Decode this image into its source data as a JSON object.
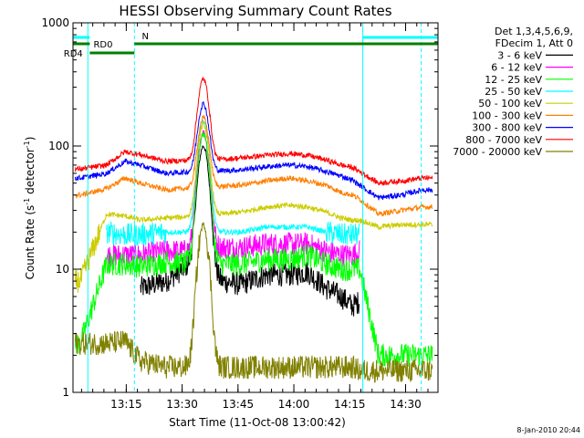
{
  "chart_data": {
    "type": "line",
    "title": "HESSI Observing Summary Count Rates",
    "xlabel": "Start Time (11-Oct-08 13:00:42)",
    "ylabel_main": "Count Rate (s",
    "ylabel_sup1": "-1",
    "ylabel_mid": " detector",
    "ylabel_sup2": "-1",
    "ylabel_end": ")",
    "yscale": "log",
    "ylim": [
      1,
      1000
    ],
    "xlim_minutes": [
      0,
      98
    ],
    "x_ticks": [
      {
        "label": "13:15",
        "minute": 14.3
      },
      {
        "label": "13:30",
        "minute": 29.3
      },
      {
        "label": "13:45",
        "minute": 44.3
      },
      {
        "label": "14:00",
        "minute": 59.3
      },
      {
        "label": "14:15",
        "minute": 74.3
      },
      {
        "label": "14:30",
        "minute": 89.3
      }
    ],
    "y_ticks": [
      {
        "label": "1",
        "value": 1
      },
      {
        "label": "10",
        "value": 10
      },
      {
        "label": "100",
        "value": 100
      },
      {
        "label": "1000",
        "value": 1000
      }
    ],
    "legend_header": [
      "Det 1,3,4,5,6,9,",
      "FDecim 1, Att 0"
    ],
    "legend_position": "right",
    "flag_labels": {
      "n": "N",
      "rd0": "RD0",
      "rd4": "RD4"
    },
    "flag_colors": {
      "n": "#00ffff",
      "rd": "#008000"
    },
    "vlines_minutes": [
      4,
      16.5,
      77.8,
      93.5
    ],
    "burst_peak_minute": 35,
    "series": [
      {
        "name": "3 - 6 keV",
        "color": "#000000",
        "base": [
          null,
          null,
          null,
          7,
          8,
          12,
          8,
          7.5,
          9,
          9,
          9.5,
          7,
          6,
          5,
          5.5,
          null,
          null,
          null
        ],
        "peak": 100
      },
      {
        "name": "6 - 12 keV",
        "color": "#ff00ff",
        "base": [
          null,
          13,
          13,
          13,
          14,
          14,
          15,
          15,
          16,
          16,
          16,
          14,
          13,
          13,
          14,
          null,
          null,
          null
        ],
        "peak": 130
      },
      {
        "name": "12 - 25 keV",
        "color": "#00ff00",
        "base": [
          2.5,
          11,
          11,
          10.5,
          11.5,
          11,
          11,
          11,
          12,
          12,
          13,
          11,
          10,
          10,
          10,
          2,
          2,
          2
        ],
        "peak": 125
      },
      {
        "name": "25 - 50 keV",
        "color": "#00ffff",
        "base": [
          null,
          20,
          19,
          19,
          20,
          20,
          20,
          20,
          22,
          22,
          22,
          20,
          19,
          19,
          19,
          null,
          null,
          null
        ],
        "peak": 160
      },
      {
        "name": "50 - 100 keV",
        "color": "#cccc00",
        "base": [
          8,
          28,
          27,
          25,
          26,
          27,
          28,
          29,
          32,
          33,
          32,
          29,
          26,
          25,
          25,
          22,
          23,
          23
        ],
        "peak": 150
      },
      {
        "name": "100 - 300 keV",
        "color": "#ff7f00",
        "base": [
          40,
          45,
          55,
          50,
          44,
          46,
          47,
          48,
          52,
          55,
          52,
          48,
          42,
          40,
          37,
          28,
          30,
          32
        ],
        "peak": 170
      },
      {
        "name": "300 - 800 keV",
        "color": "#0000ff",
        "base": [
          55,
          60,
          75,
          70,
          60,
          62,
          63,
          64,
          68,
          70,
          68,
          62,
          57,
          53,
          48,
          38,
          40,
          44
        ],
        "peak": 220
      },
      {
        "name": "800 - 7000 keV",
        "color": "#ff0000",
        "base": [
          65,
          70,
          90,
          85,
          75,
          77,
          78,
          80,
          84,
          87,
          84,
          77,
          70,
          67,
          62,
          50,
          52,
          55
        ],
        "peak": 350
      },
      {
        "name": "7000 - 20000 keV",
        "color": "#808000",
        "base": [
          2.5,
          2.5,
          2.6,
          1.8,
          1.6,
          1.6,
          1.6,
          1.6,
          1.6,
          1.6,
          1.6,
          1.6,
          1.6,
          1.6,
          1.5,
          1.5,
          1.5,
          1.5
        ],
        "peak": 23
      }
    ],
    "base_minutes": [
      2,
      9,
      14,
      18,
      25,
      33,
      40,
      45,
      52,
      58,
      63,
      68,
      72,
      75,
      77,
      82,
      88,
      94
    ]
  },
  "footer": {
    "date": "8-Jan-2010 20:44"
  }
}
